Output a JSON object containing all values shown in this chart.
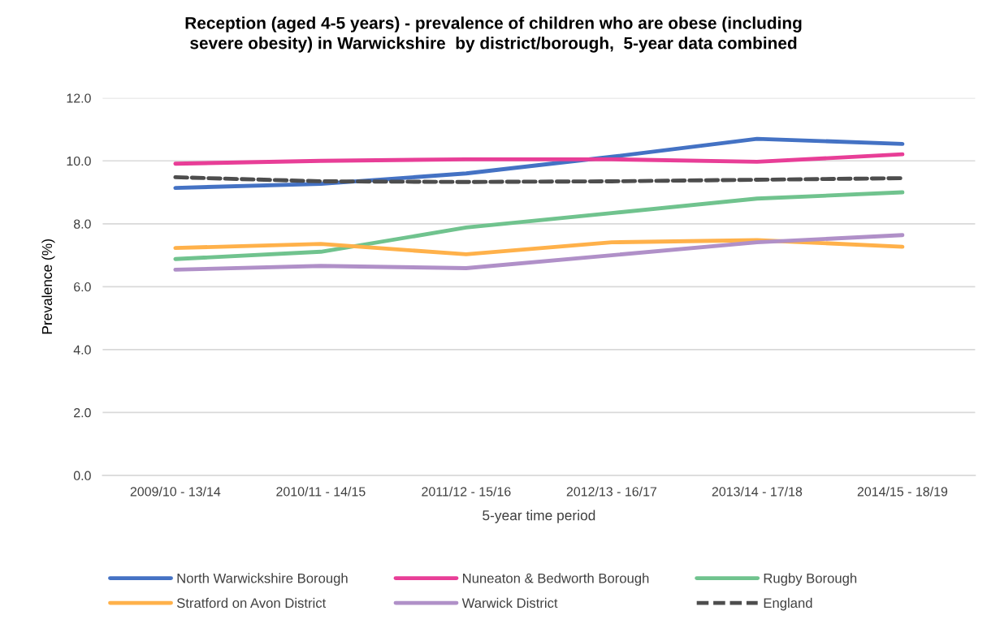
{
  "chart_data": {
    "type": "line",
    "title": "Reception (aged 4-5 years) - prevalence of children who are obese (including\nsevere obesity) in Warwickshire  by district/borough,  5-year data combined",
    "xlabel": "5-year time period",
    "ylabel": "Prevalence (%)",
    "categories": [
      "2009/10 - 13/14",
      "2010/11 - 14/15",
      "2011/12 - 15/16",
      "2012/13 - 16/17",
      "2013/14 - 17/18",
      "2014/15 - 18/19"
    ],
    "series": [
      {
        "name": "North Warwickshire Borough",
        "color": "#4472c4",
        "values": [
          9.14,
          9.27,
          9.6,
          10.13,
          10.7,
          10.54
        ]
      },
      {
        "name": "Nuneaton & Bedworth Borough",
        "color": "#e83e97",
        "values": [
          9.91,
          10.0,
          10.05,
          10.05,
          9.97,
          10.21
        ]
      },
      {
        "name": "Rugby Borough",
        "color": "#70c38e",
        "values": [
          6.88,
          7.11,
          7.88,
          8.34,
          8.8,
          9.0
        ]
      },
      {
        "name": "Stratford on Avon District",
        "color": "#ffb14a",
        "values": [
          7.23,
          7.36,
          7.03,
          7.41,
          7.48,
          7.27
        ]
      },
      {
        "name": "Warwick District",
        "color": "#b090c8",
        "values": [
          6.54,
          6.66,
          6.59,
          7.0,
          7.41,
          7.64
        ]
      },
      {
        "name": "England",
        "color": "#4d4d4d",
        "line_style": "dashed",
        "values": [
          9.48,
          9.35,
          9.33,
          9.35,
          9.4,
          9.45
        ]
      }
    ],
    "ylim": [
      0,
      12
    ],
    "yticks": [
      {
        "value": 0,
        "label": "0.0"
      },
      {
        "value": 2,
        "label": "2.0"
      },
      {
        "value": 4,
        "label": "4.0"
      },
      {
        "value": 6,
        "label": "6.0"
      },
      {
        "value": 8,
        "label": "8.0"
      },
      {
        "value": 10,
        "label": "10.0"
      },
      {
        "value": 12,
        "label": "12.0"
      }
    ],
    "grid": "y",
    "legend": "bottom",
    "line_style": "solid"
  }
}
